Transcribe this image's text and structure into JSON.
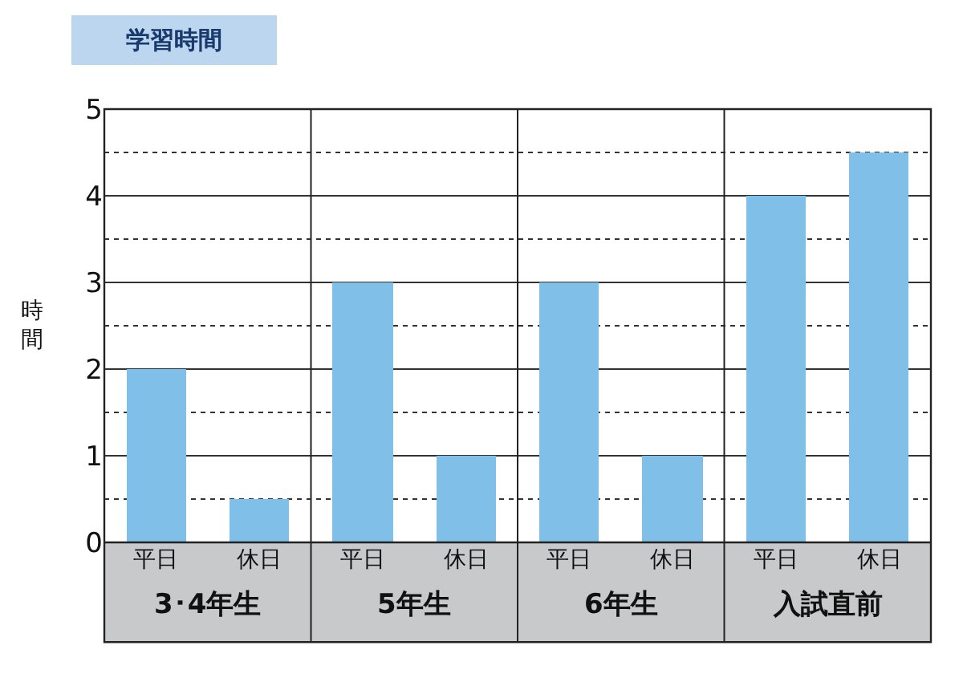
{
  "chart_data": {
    "type": "bar",
    "title": "学習時間",
    "ylabel": "時間",
    "categories": [
      "平日",
      "休日",
      "平日",
      "休日",
      "平日",
      "休日",
      "平日",
      "休日"
    ],
    "values": [
      2,
      0.5,
      3,
      1,
      3,
      1,
      4,
      4.5
    ],
    "color": "#7fbfe8",
    "annotations": [
      "3･4年生",
      "5年生",
      "6年生",
      "入試直前"
    ],
    "ylim": [
      0,
      5
    ],
    "yticks": [
      0,
      {
        "value": 0.5,
        "label": null
      },
      1,
      {
        "value": 1.5,
        "label": null
      },
      2,
      {
        "value": 2.5,
        "label": null
      },
      3,
      {
        "value": 3.5,
        "label": null
      },
      4,
      {
        "value": 4.5,
        "label": null
      },
      5
    ],
    "grid": "y"
  }
}
